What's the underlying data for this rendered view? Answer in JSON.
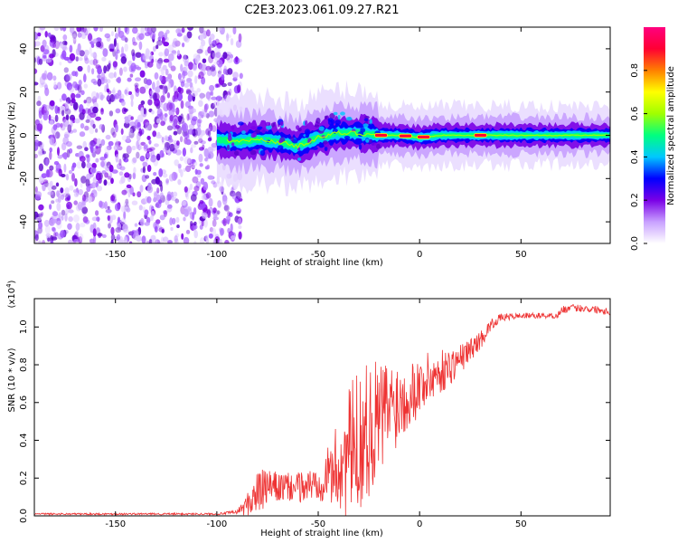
{
  "title": "C2E3.2023.061.09.27.R21",
  "chart_data": [
    {
      "type": "heatmap",
      "name": "spectrogram",
      "xlabel": "Height of straight line (km)",
      "ylabel": "Frequency (Hz)",
      "xlim": [
        -190,
        94
      ],
      "ylim": [
        -50,
        50
      ],
      "xticks": [
        -150,
        -100,
        -50,
        0,
        50
      ],
      "xtick_labels": [
        "-150",
        "-100",
        "-50",
        "0",
        "50"
      ],
      "yticks": [
        -40,
        -20,
        0,
        20,
        40
      ],
      "ytick_labels": [
        "-40",
        "-20",
        "0",
        "20",
        "40"
      ],
      "noise_region_x": [
        -190,
        -90
      ],
      "signal_ridge": {
        "x": [
          -100,
          -90,
          -80,
          -70,
          -60,
          -50,
          -40,
          -30,
          -20,
          -10,
          0,
          10,
          20,
          40,
          60,
          80,
          94
        ],
        "y": [
          -2,
          -3,
          -2,
          -3,
          -5,
          -1,
          1,
          1,
          0,
          0,
          -1,
          0,
          0,
          0,
          0,
          0,
          0
        ]
      },
      "peak_markers_x": [
        -19,
        -7,
        2,
        30
      ],
      "colorbar": {
        "label": "Normalized spectral amplitude",
        "range": [
          0.0,
          1.0
        ],
        "ticks": [
          0.0,
          0.2,
          0.4,
          0.6,
          0.8
        ],
        "tick_labels": [
          "0.0",
          "0.2",
          "0.4",
          "0.6",
          "0.8"
        ],
        "colors": [
          "#ffffff",
          "#c8a0ff",
          "#7a00e6",
          "#0000ff",
          "#00c8ff",
          "#00ff7f",
          "#a0ff00",
          "#ffff00",
          "#ff8000",
          "#ff0033",
          "#ff007f"
        ]
      }
    },
    {
      "type": "line",
      "name": "snr",
      "xlabel": "Height of straight line (km)",
      "ylabel": "SNR (10 * v/v)",
      "ylabel_scale": "(x10",
      "ylabel_scale_exp": "4",
      "ylabel_scale_close": ")",
      "xlim": [
        -190,
        94
      ],
      "ylim": [
        0,
        11.5
      ],
      "xticks": [
        -150,
        -100,
        -50,
        0,
        50
      ],
      "xtick_labels": [
        "-150",
        "-100",
        "-50",
        "0",
        "50"
      ],
      "yticks": [
        0,
        2,
        4,
        6,
        8,
        10
      ],
      "ytick_labels": [
        "0.0",
        "0.2",
        "0.4",
        "0.6",
        "0.8",
        "1.0"
      ],
      "series": [
        {
          "name": "SNR",
          "color": "#ee3333",
          "x": [
            -190,
            -150,
            -100,
            -90,
            -85,
            -80,
            -75,
            -70,
            -65,
            -60,
            -55,
            -50,
            -45,
            -40,
            -35,
            -30,
            -25,
            -20,
            -15,
            -10,
            -5,
            0,
            5,
            10,
            15,
            20,
            25,
            30,
            35,
            40,
            50,
            60,
            68,
            70,
            75,
            80,
            90,
            94
          ],
          "base": [
            0.1,
            0.1,
            0.1,
            0.2,
            0.6,
            1.2,
            1.5,
            1.5,
            1.5,
            1.5,
            1.6,
            1.8,
            2.2,
            2.6,
            3.3,
            4.0,
            4.6,
            5.1,
            5.7,
            6.1,
            6.5,
            6.9,
            7.3,
            7.6,
            7.9,
            8.3,
            8.8,
            9.3,
            10.1,
            10.5,
            10.6,
            10.6,
            10.6,
            10.9,
            11.0,
            11.0,
            10.9,
            10.8
          ],
          "spread": [
            0.05,
            0.05,
            0.05,
            0.1,
            0.6,
            1.2,
            1.0,
            0.8,
            0.8,
            0.8,
            0.9,
            1.0,
            1.5,
            2.5,
            3.5,
            3.8,
            3.6,
            3.2,
            2.8,
            2.2,
            1.8,
            1.6,
            1.4,
            1.2,
            1.0,
            0.8,
            0.6,
            0.5,
            0.3,
            0.2,
            0.15,
            0.15,
            0.15,
            0.2,
            0.2,
            0.2,
            0.2,
            0.2
          ]
        }
      ]
    }
  ]
}
